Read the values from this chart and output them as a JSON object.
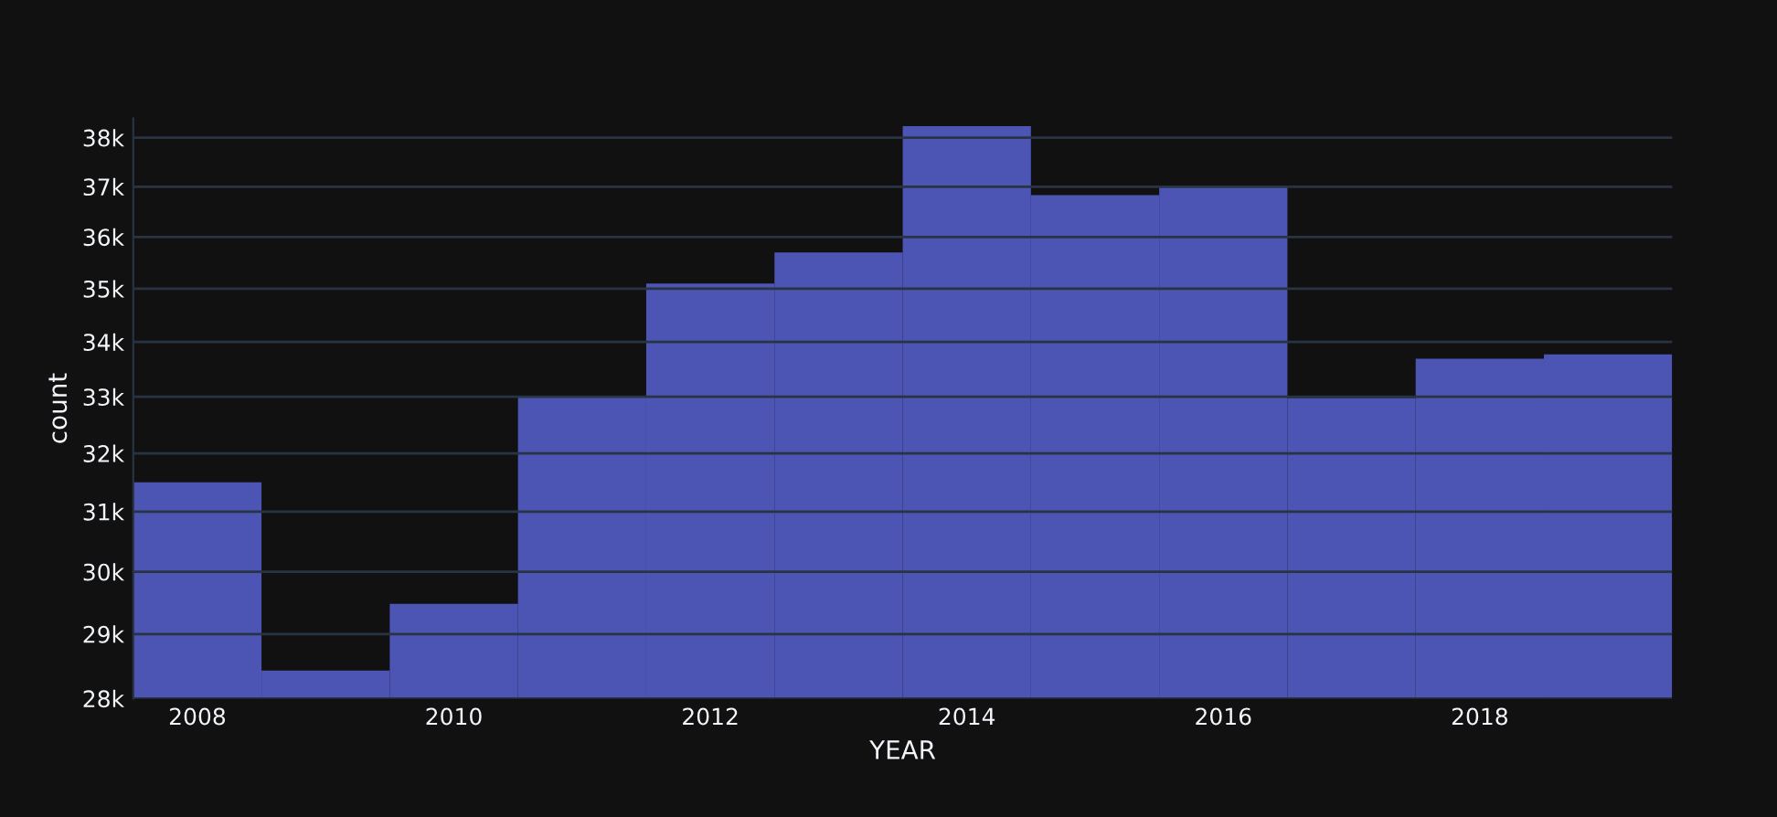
{
  "chart_data": {
    "type": "histogram",
    "xlabel": "YEAR",
    "ylabel": "count",
    "bins": [
      2007.5,
      2008.5,
      2009.5,
      2010.5,
      2011.5,
      2012.5,
      2013.5,
      2014.5,
      2015.5,
      2016.5,
      2017.5,
      2018.5,
      2019.5
    ],
    "values": [
      31500,
      28430,
      29480,
      33000,
      35100,
      35700,
      38240,
      36830,
      37000,
      32980,
      33690,
      33770
    ],
    "color": "#4c54b4",
    "log": true,
    "xlim": [
      2007.5,
      2019.5
    ],
    "xticks": [
      2008,
      2010,
      2012,
      2014,
      2016,
      2018
    ],
    "ylim": [
      28000,
      38400
    ],
    "yticks": [
      {
        "value": 28000,
        "label": "28k"
      },
      {
        "value": 29000,
        "label": "29k"
      },
      {
        "value": 30000,
        "label": "30k"
      },
      {
        "value": 31000,
        "label": "31k"
      },
      {
        "value": 32000,
        "label": "32k"
      },
      {
        "value": 33000,
        "label": "33k"
      },
      {
        "value": 34000,
        "label": "34k"
      },
      {
        "value": 35000,
        "label": "35k"
      },
      {
        "value": 36000,
        "label": "36k"
      },
      {
        "value": 37000,
        "label": "37k"
      },
      {
        "value": 38000,
        "label": "38k"
      }
    ],
    "grid": "y"
  }
}
